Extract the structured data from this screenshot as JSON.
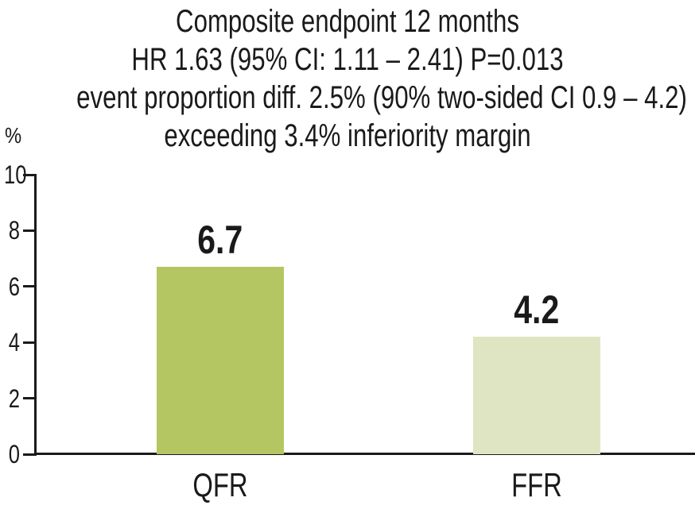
{
  "chart_data": {
    "type": "bar",
    "title_lines": [
      "Composite endpoint 12 months",
      "HR 1.63 (95% CI: 1.11 – 2.41) P=0.013",
      "event proportion diff. 2.5% (90% two-sided CI 0.9 – 4.2)",
      "exceeding 3.4% inferiority margin"
    ],
    "ylabel": "%",
    "categories": [
      "QFR",
      "FFR"
    ],
    "values": [
      6.7,
      4.2
    ],
    "value_labels": [
      "6.7",
      "4.2"
    ],
    "bar_colors": [
      "#b4c661",
      "#dfe5c2"
    ],
    "yticks": [
      0,
      2,
      4,
      6,
      8,
      10
    ],
    "ylim": [
      0,
      10
    ],
    "grid": false,
    "legend": "none"
  },
  "colors": {
    "text": "#1a1a1a",
    "axis": "#1a1a1a",
    "background": "#ffffff"
  }
}
